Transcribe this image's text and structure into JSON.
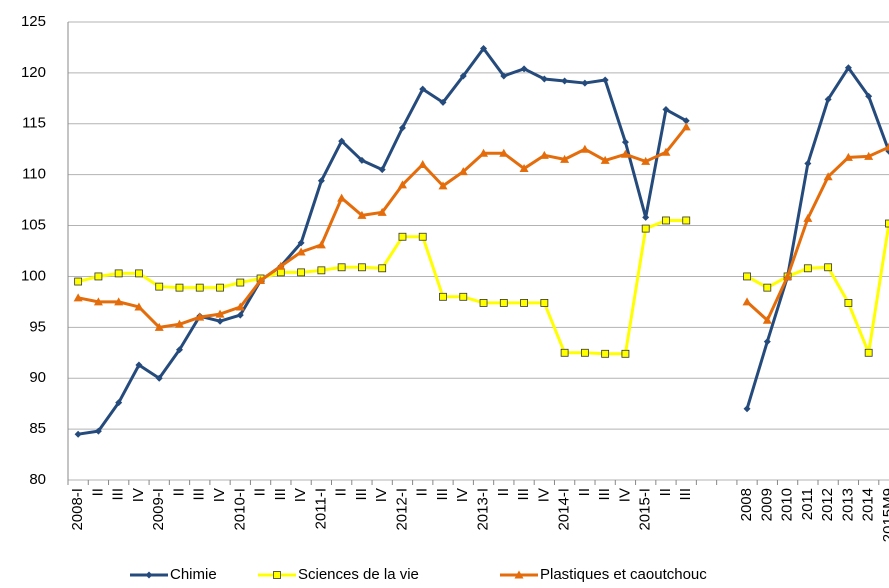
{
  "chart_data": {
    "type": "line",
    "categories": [
      "2008-I",
      "II",
      "III",
      "IV",
      "2009-I",
      "II",
      "III",
      "IV",
      "2010-I",
      "II",
      "III",
      "IV",
      "2011-I",
      "II",
      "III",
      "IV",
      "2012-I",
      "II",
      "III",
      "IV",
      "2013-I",
      "II",
      "III",
      "IV",
      "2014-I",
      "II",
      "III",
      "IV",
      "2015-I",
      "II",
      "III",
      null,
      null,
      "2008",
      "2009",
      "2010",
      "2011",
      "2012",
      "2013",
      "2014",
      "2015M9"
    ],
    "series": [
      {
        "name": "Chimie",
        "color": "#254a7c",
        "marker": "diamond",
        "values": [
          84.5,
          84.8,
          87.6,
          91.3,
          90.0,
          92.8,
          96.1,
          95.6,
          96.2,
          99.6,
          101.0,
          103.3,
          109.4,
          113.3,
          111.4,
          110.5,
          114.6,
          118.4,
          117.1,
          119.7,
          122.4,
          119.7,
          120.4,
          119.4,
          119.2,
          119.0,
          119.3,
          113.2,
          105.8,
          116.4,
          115.3,
          null,
          null,
          87.0,
          93.6,
          100.0,
          111.1,
          117.4,
          120.5,
          117.7,
          112.3
        ]
      },
      {
        "name": "Sciences de la vie",
        "color": "#ffff00",
        "marker": "square",
        "values": [
          99.5,
          100.0,
          100.3,
          100.3,
          99.0,
          98.9,
          98.9,
          98.9,
          99.4,
          99.8,
          100.4,
          100.4,
          100.6,
          100.9,
          100.9,
          100.8,
          103.9,
          103.9,
          98.0,
          98.0,
          97.4,
          97.4,
          97.4,
          97.4,
          92.5,
          92.5,
          92.4,
          92.4,
          104.7,
          105.5,
          105.5,
          null,
          null,
          100.0,
          98.9,
          100.0,
          100.8,
          100.9,
          97.4,
          92.5,
          105.2
        ]
      },
      {
        "name": "Plastiques et caoutchouc",
        "color": "#e46c0a",
        "marker": "triangle",
        "values": [
          97.9,
          97.5,
          97.5,
          97.0,
          95.0,
          95.3,
          96.0,
          96.3,
          97.0,
          99.6,
          101.0,
          102.4,
          103.1,
          107.7,
          106.0,
          106.3,
          109.0,
          111.0,
          108.9,
          110.3,
          112.1,
          112.1,
          110.6,
          111.9,
          111.5,
          112.5,
          111.4,
          112.0,
          111.3,
          112.2,
          114.7,
          null,
          null,
          97.5,
          95.7,
          100.0,
          105.7,
          109.8,
          111.7,
          111.8,
          112.7
        ]
      }
    ],
    "ylim": [
      80,
      125
    ],
    "yticks": [
      80,
      85,
      90,
      95,
      100,
      105,
      110,
      115,
      120,
      125
    ],
    "grid": true,
    "legend": "bottom"
  }
}
